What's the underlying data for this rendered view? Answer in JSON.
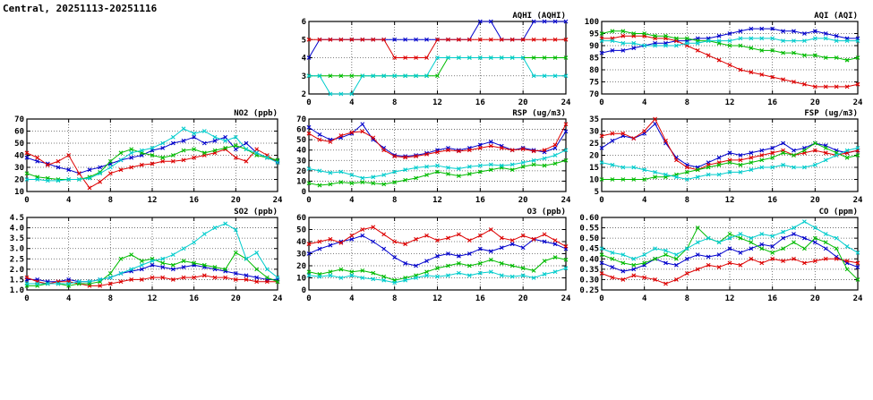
{
  "page": {
    "title": "Central, 20251113-20251116"
  },
  "colors": {
    "blue": "#0000cc",
    "red": "#dd0000",
    "green": "#00bb00",
    "cyan": "#00cccc"
  },
  "x": {
    "min": 0,
    "max": 24,
    "ticks": [
      0,
      4,
      8,
      12,
      16,
      20,
      24
    ]
  },
  "chart_data": [
    {
      "key": "aqhi",
      "type": "line",
      "title": "AQHI (AQHI)",
      "ylim": [
        2,
        6
      ],
      "yticks": [
        "2",
        "3",
        "4",
        "5",
        "6"
      ],
      "series": [
        {
          "name": "line-blue",
          "color": "blue",
          "values": [
            4,
            5,
            5,
            5,
            5,
            5,
            5,
            5,
            5,
            5,
            5,
            5,
            5,
            5,
            5,
            5,
            6,
            6,
            5,
            5,
            5,
            6,
            6,
            6,
            6
          ]
        },
        {
          "name": "line-red",
          "color": "red",
          "values": [
            5,
            5,
            5,
            5,
            5,
            5,
            5,
            5,
            4,
            4,
            4,
            4,
            5,
            5,
            5,
            5,
            5,
            5,
            5,
            5,
            5,
            5,
            5,
            5,
            5
          ]
        },
        {
          "name": "line-green",
          "color": "green",
          "values": [
            3,
            3,
            3,
            3,
            3,
            3,
            3,
            3,
            3,
            3,
            3,
            3,
            3,
            4,
            4,
            4,
            4,
            4,
            4,
            4,
            4,
            4,
            4,
            4,
            4
          ]
        },
        {
          "name": "line-cyan",
          "color": "cyan",
          "values": [
            3,
            3,
            2,
            2,
            2,
            3,
            3,
            3,
            3,
            3,
            3,
            3,
            4,
            4,
            4,
            4,
            4,
            4,
            4,
            4,
            4,
            3,
            3,
            3,
            3
          ]
        }
      ]
    },
    {
      "key": "aqi",
      "type": "line",
      "title": "AQI (AQI)",
      "ylim": [
        70,
        100
      ],
      "yticks": [
        "70",
        "75",
        "80",
        "85",
        "90",
        "95",
        "100"
      ],
      "series": [
        {
          "name": "line-blue",
          "color": "blue",
          "values": [
            87,
            88,
            88,
            89,
            90,
            91,
            91,
            92,
            92,
            93,
            93,
            94,
            95,
            96,
            97,
            97,
            97,
            96,
            96,
            95,
            96,
            95,
            94,
            93,
            93
          ]
        },
        {
          "name": "line-red",
          "color": "red",
          "values": [
            93,
            93,
            94,
            94,
            94,
            93,
            93,
            92,
            90,
            88,
            86,
            84,
            82,
            80,
            79,
            78,
            77,
            76,
            75,
            74,
            73,
            73,
            73,
            73,
            74
          ]
        },
        {
          "name": "line-green",
          "color": "green",
          "values": [
            95,
            96,
            96,
            95,
            95,
            94,
            94,
            93,
            93,
            92,
            92,
            91,
            90,
            90,
            89,
            88,
            88,
            87,
            87,
            86,
            86,
            85,
            85,
            84,
            85
          ]
        },
        {
          "name": "line-cyan",
          "color": "cyan",
          "values": [
            92,
            92,
            91,
            91,
            90,
            90,
            90,
            90,
            91,
            91,
            92,
            92,
            92,
            93,
            93,
            93,
            93,
            92,
            92,
            92,
            93,
            93,
            92,
            92,
            92
          ]
        }
      ]
    },
    {
      "key": "no2",
      "type": "line",
      "title": "NO2 (ppb)",
      "ylim": [
        10,
        70
      ],
      "yticks": [
        "10",
        "20",
        "30",
        "40",
        "50",
        "60",
        "70"
      ],
      "series": [
        {
          "name": "line-blue",
          "color": "blue",
          "values": [
            38,
            35,
            33,
            30,
            28,
            25,
            28,
            30,
            33,
            36,
            38,
            40,
            44,
            46,
            50,
            52,
            55,
            50,
            52,
            55,
            45,
            50,
            42,
            38,
            35
          ]
        },
        {
          "name": "line-red",
          "color": "red",
          "values": [
            42,
            38,
            32,
            35,
            40,
            25,
            13,
            18,
            25,
            28,
            30,
            32,
            33,
            35,
            35,
            36,
            38,
            40,
            42,
            45,
            38,
            35,
            45,
            40,
            34
          ]
        },
        {
          "name": "line-green",
          "color": "green",
          "values": [
            25,
            22,
            21,
            20,
            20,
            20,
            22,
            26,
            35,
            42,
            45,
            42,
            40,
            38,
            40,
            44,
            45,
            42,
            44,
            46,
            48,
            45,
            40,
            38,
            36
          ]
        },
        {
          "name": "line-cyan",
          "color": "cyan",
          "values": [
            20,
            20,
            19,
            19,
            20,
            20,
            21,
            25,
            30,
            36,
            42,
            44,
            46,
            50,
            55,
            62,
            58,
            60,
            55,
            52,
            55,
            45,
            42,
            38,
            34
          ]
        }
      ]
    },
    {
      "key": "rsp",
      "type": "line",
      "title": "RSP (ug/m3)",
      "ylim": [
        0,
        70
      ],
      "yticks": [
        "0",
        "10",
        "20",
        "30",
        "40",
        "50",
        "60",
        "70"
      ],
      "series": [
        {
          "name": "line-blue",
          "color": "blue",
          "values": [
            62,
            55,
            50,
            52,
            56,
            65,
            50,
            42,
            35,
            34,
            35,
            37,
            40,
            42,
            40,
            42,
            45,
            48,
            44,
            40,
            42,
            40,
            38,
            42,
            58
          ]
        },
        {
          "name": "line-red",
          "color": "red",
          "values": [
            56,
            50,
            48,
            54,
            57,
            58,
            52,
            40,
            34,
            33,
            34,
            36,
            38,
            40,
            39,
            40,
            42,
            44,
            42,
            40,
            41,
            39,
            40,
            45,
            65
          ]
        },
        {
          "name": "line-green",
          "color": "green",
          "values": [
            8,
            6,
            7,
            9,
            8,
            9,
            8,
            7,
            9,
            11,
            13,
            16,
            19,
            17,
            15,
            17,
            19,
            21,
            23,
            21,
            24,
            26,
            25,
            27,
            30
          ]
        },
        {
          "name": "line-cyan",
          "color": "cyan",
          "values": [
            22,
            20,
            18,
            19,
            16,
            13,
            14,
            16,
            19,
            21,
            23,
            24,
            25,
            23,
            22,
            24,
            25,
            26,
            25,
            26,
            28,
            30,
            32,
            35,
            40
          ]
        }
      ]
    },
    {
      "key": "fsp",
      "type": "line",
      "title": "FSP (ug/m3)",
      "ylim": [
        5,
        35
      ],
      "yticks": [
        "5",
        "10",
        "15",
        "20",
        "25",
        "30",
        "35"
      ],
      "series": [
        {
          "name": "line-blue",
          "color": "blue",
          "values": [
            23,
            26,
            28,
            27,
            29,
            33,
            25,
            19,
            16,
            15,
            17,
            19,
            21,
            20,
            21,
            22,
            23,
            25,
            22,
            23,
            25,
            24,
            22,
            21,
            22
          ]
        },
        {
          "name": "line-red",
          "color": "red",
          "values": [
            28,
            29,
            29,
            27,
            30,
            35,
            26,
            18,
            15,
            14,
            16,
            17,
            18,
            18,
            19,
            20,
            21,
            22,
            20,
            21,
            22,
            21,
            20,
            21,
            22
          ]
        },
        {
          "name": "line-green",
          "color": "green",
          "values": [
            10,
            10,
            10,
            10,
            10,
            11,
            11,
            12,
            13,
            14,
            15,
            16,
            17,
            16,
            17,
            18,
            19,
            21,
            20,
            22,
            25,
            23,
            21,
            19,
            20
          ]
        },
        {
          "name": "line-cyan",
          "color": "cyan",
          "values": [
            17,
            16,
            15,
            15,
            14,
            13,
            12,
            11,
            10,
            11,
            12,
            12,
            13,
            13,
            14,
            15,
            15,
            16,
            15,
            15,
            16,
            18,
            20,
            22,
            23
          ]
        }
      ]
    },
    {
      "key": "so2",
      "type": "line",
      "title": "SO2 (ppb)",
      "ylim": [
        1.0,
        4.5
      ],
      "yticks": [
        "1.0",
        "1.5",
        "2.0",
        "2.5",
        "3.0",
        "3.5",
        "4.0",
        "4.5"
      ],
      "series": [
        {
          "name": "line-blue",
          "color": "blue",
          "values": [
            1.5,
            1.5,
            1.4,
            1.4,
            1.5,
            1.4,
            1.4,
            1.5,
            1.6,
            1.8,
            1.9,
            2.0,
            2.2,
            2.1,
            2.0,
            2.1,
            2.2,
            2.1,
            2.0,
            1.9,
            1.8,
            1.7,
            1.6,
            1.5,
            1.5
          ]
        },
        {
          "name": "line-red",
          "color": "red",
          "values": [
            1.6,
            1.4,
            1.3,
            1.4,
            1.4,
            1.3,
            1.2,
            1.2,
            1.3,
            1.4,
            1.5,
            1.5,
            1.6,
            1.6,
            1.5,
            1.6,
            1.6,
            1.7,
            1.6,
            1.6,
            1.5,
            1.5,
            1.4,
            1.4,
            1.4
          ]
        },
        {
          "name": "line-green",
          "color": "green",
          "values": [
            1.2,
            1.2,
            1.3,
            1.3,
            1.2,
            1.3,
            1.3,
            1.4,
            1.8,
            2.5,
            2.7,
            2.4,
            2.5,
            2.3,
            2.2,
            2.4,
            2.3,
            2.2,
            2.1,
            2.0,
            2.8,
            2.5,
            2.0,
            1.6,
            1.4
          ]
        },
        {
          "name": "line-cyan",
          "color": "cyan",
          "values": [
            1.3,
            1.3,
            1.3,
            1.3,
            1.3,
            1.4,
            1.4,
            1.5,
            1.6,
            1.8,
            2.0,
            2.2,
            2.4,
            2.5,
            2.7,
            3.0,
            3.3,
            3.7,
            4.0,
            4.2,
            3.9,
            2.5,
            2.8,
            2.0,
            1.6
          ]
        }
      ]
    },
    {
      "key": "o3",
      "type": "line",
      "title": "O3 (ppb)",
      "ylim": [
        0,
        60
      ],
      "yticks": [
        "0",
        "10",
        "20",
        "30",
        "40",
        "50",
        "60"
      ],
      "series": [
        {
          "name": "line-blue",
          "color": "blue",
          "values": [
            30,
            34,
            37,
            40,
            42,
            45,
            40,
            34,
            27,
            22,
            20,
            24,
            28,
            30,
            28,
            30,
            34,
            32,
            35,
            38,
            35,
            42,
            40,
            38,
            34
          ]
        },
        {
          "name": "line-red",
          "color": "red",
          "values": [
            38,
            40,
            42,
            39,
            45,
            50,
            52,
            46,
            40,
            38,
            42,
            45,
            41,
            43,
            46,
            41,
            45,
            50,
            43,
            41,
            45,
            42,
            46,
            41,
            36
          ]
        },
        {
          "name": "line-green",
          "color": "green",
          "values": [
            15,
            13,
            15,
            17,
            15,
            16,
            14,
            11,
            8,
            10,
            12,
            15,
            18,
            20,
            22,
            20,
            22,
            25,
            22,
            20,
            18,
            16,
            24,
            27,
            25
          ]
        },
        {
          "name": "line-cyan",
          "color": "cyan",
          "values": [
            12,
            11,
            12,
            10,
            12,
            10,
            9,
            8,
            6,
            8,
            10,
            12,
            11,
            12,
            14,
            12,
            14,
            15,
            12,
            11,
            12,
            10,
            13,
            15,
            18
          ]
        }
      ]
    },
    {
      "key": "co",
      "type": "line",
      "title": "CO (ppm)",
      "ylim": [
        0.25,
        0.6
      ],
      "yticks": [
        "0.25",
        "0.30",
        "0.35",
        "0.40",
        "0.45",
        "0.50",
        "0.55",
        "0.60"
      ],
      "series": [
        {
          "name": "line-blue",
          "color": "blue",
          "values": [
            0.38,
            0.36,
            0.34,
            0.35,
            0.37,
            0.4,
            0.38,
            0.37,
            0.4,
            0.42,
            0.41,
            0.42,
            0.45,
            0.43,
            0.45,
            0.47,
            0.46,
            0.5,
            0.52,
            0.5,
            0.48,
            0.45,
            0.41,
            0.38,
            0.36
          ]
        },
        {
          "name": "line-red",
          "color": "red",
          "values": [
            0.33,
            0.31,
            0.3,
            0.32,
            0.31,
            0.3,
            0.28,
            0.3,
            0.33,
            0.35,
            0.37,
            0.36,
            0.38,
            0.37,
            0.4,
            0.38,
            0.4,
            0.39,
            0.4,
            0.38,
            0.39,
            0.4,
            0.4,
            0.39,
            0.38
          ]
        },
        {
          "name": "line-green",
          "color": "green",
          "values": [
            0.42,
            0.4,
            0.38,
            0.37,
            0.38,
            0.4,
            0.42,
            0.4,
            0.45,
            0.55,
            0.5,
            0.48,
            0.52,
            0.5,
            0.48,
            0.45,
            0.43,
            0.45,
            0.48,
            0.45,
            0.5,
            0.48,
            0.45,
            0.35,
            0.3
          ]
        },
        {
          "name": "line-cyan",
          "color": "cyan",
          "values": [
            0.45,
            0.43,
            0.42,
            0.4,
            0.42,
            0.45,
            0.44,
            0.42,
            0.45,
            0.48,
            0.5,
            0.48,
            0.5,
            0.52,
            0.5,
            0.52,
            0.51,
            0.53,
            0.55,
            0.58,
            0.55,
            0.52,
            0.5,
            0.46,
            0.43
          ]
        }
      ]
    }
  ]
}
